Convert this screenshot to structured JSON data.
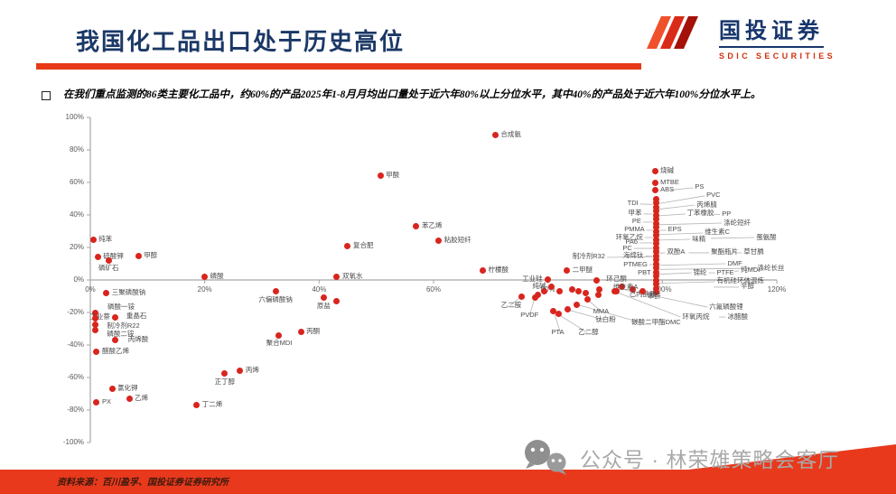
{
  "header": {
    "title": "我国化工品出口处于历史高位"
  },
  "logo": {
    "name": "国投证券",
    "subtitle": "SDIC SECURITIES"
  },
  "bullet": {
    "marker": "□",
    "text": "在我们重点监测的86类主要化工品中，约60%的产品2025年1-8月月均出口量处于近六年80%以上分位水平，其中40%的产品处于近六年100%分位水平上。"
  },
  "watermark": {
    "icon": "wechat-bubbles-icon",
    "text": "公众号 · 林荣雄策略会客厅"
  },
  "footer": {
    "source": "资料来源：百川盈孚、国投证券证券研究所"
  },
  "theme": {
    "accent_red": "#E8391C",
    "dot_red": "#D8251D",
    "navy": "#17356C",
    "label_gray": "#4A4A4A",
    "axis_gray": "#A6A6A6",
    "watermark_gray": "#A9A9A9"
  },
  "chart_data": {
    "type": "scatter",
    "title": "",
    "xlabel": "",
    "ylabel": "",
    "xlim": [
      0,
      120
    ],
    "ylim": [
      -100,
      100
    ],
    "grid": false,
    "x_ticks": [
      {
        "v": 0,
        "label": "0%"
      },
      {
        "v": 20,
        "label": "20%"
      },
      {
        "v": 40,
        "label": "40%"
      },
      {
        "v": 60,
        "label": "60%"
      },
      {
        "v": 80,
        "label": "80%"
      },
      {
        "v": 100,
        "label": "100%"
      },
      {
        "v": 120,
        "label": "120%"
      }
    ],
    "y_ticks": [
      {
        "v": 100,
        "label": "100%"
      },
      {
        "v": 80,
        "label": "80%"
      },
      {
        "v": 60,
        "label": "60%"
      },
      {
        "v": 40,
        "label": "40%"
      },
      {
        "v": 20,
        "label": "20%"
      },
      {
        "v": 0,
        "label": "0%"
      },
      {
        "v": -20,
        "label": "-20%"
      },
      {
        "v": -40,
        "label": "-40%"
      },
      {
        "v": -60,
        "label": "-60%"
      },
      {
        "v": -80,
        "label": "-80%"
      },
      {
        "v": -100,
        "label": "-100%"
      }
    ],
    "points": [
      {
        "label": "纯苯",
        "x": 0.5,
        "y": 25,
        "lp": "r"
      },
      {
        "label": "硫酸钾",
        "x": 1.3,
        "y": 14.4,
        "lp": "r"
      },
      {
        "label": "磷矿石",
        "x": 3.2,
        "y": 12.2,
        "lp": "b"
      },
      {
        "label": "甲醇",
        "x": 8.4,
        "y": 15,
        "lp": "r"
      },
      {
        "label": "磷酸",
        "x": 20,
        "y": 2,
        "lp": "r"
      },
      {
        "label": "三聚磷酸钠",
        "x": 2.8,
        "y": -7.8,
        "lp": "r"
      },
      {
        "label": "磷酸一铵",
        "x": 0.8,
        "y": -20.5,
        "lx": 3,
        "ly": -16.5
      },
      {
        "label": "工业萘",
        "x": 4.4,
        "y": -22.8,
        "lp": "l"
      },
      {
        "label": "重晶石",
        "x": 0.8,
        "y": -23.8,
        "lx": 6.3,
        "ly": -22.3
      },
      {
        "label": "制冷剂R22",
        "x": 0.8,
        "y": -27.5,
        "lx": 2.9,
        "ly": -28.3
      },
      {
        "label": "磷酸二铵",
        "x": 0.8,
        "y": -31,
        "lx": 2.9,
        "ly": -33.3
      },
      {
        "label": "丙烯酸",
        "x": 4.3,
        "y": -37,
        "lx": 6.6,
        "ly": -36.4
      },
      {
        "label": "醋酸乙烯",
        "x": 1.1,
        "y": -44,
        "lp": "r"
      },
      {
        "label": "氯化钾",
        "x": 3.8,
        "y": -67,
        "lp": "r"
      },
      {
        "label": "PX",
        "x": 1.1,
        "y": -75.5,
        "lp": "r"
      },
      {
        "label": "乙烯",
        "x": 6.8,
        "y": -73,
        "lp": "r"
      },
      {
        "label": "丁二烯",
        "x": 18.6,
        "y": -77,
        "lp": "r"
      },
      {
        "label": "正丁醇",
        "x": 23.5,
        "y": -57.5,
        "lp": "b"
      },
      {
        "label": "丙烯",
        "x": 26.2,
        "y": -56,
        "lp": "r"
      },
      {
        "label": "聚合MDI",
        "x": 33,
        "y": -34,
        "lp": "b"
      },
      {
        "label": "丙酮",
        "x": 36.8,
        "y": -32,
        "lp": "r"
      },
      {
        "label": "六偏磷酸钠",
        "x": 32.4,
        "y": -7.2,
        "lp": "b"
      },
      {
        "label": "原盐",
        "x": 40.8,
        "y": -11,
        "lp": "b"
      },
      {
        "label": "双氧水",
        "x": 43.1,
        "y": 1.7,
        "lp": "r"
      },
      {
        "label": "复合肥",
        "x": 45,
        "y": 20.6,
        "lp": "r"
      },
      {
        "label": "苯乙烯",
        "x": 57,
        "y": 33.3,
        "lp": "r"
      },
      {
        "label": "粘胶短纤",
        "x": 60.9,
        "y": 23.9,
        "lp": "r"
      },
      {
        "label": "甲酸",
        "x": 50.7,
        "y": 64,
        "lp": "r"
      },
      {
        "label": "合成氨",
        "x": 70.8,
        "y": 89,
        "lp": "r"
      },
      {
        "label": "柠檬酸",
        "x": 68.6,
        "y": 5.6,
        "lp": "r"
      },
      {
        "label": "二甲醚",
        "x": 83.3,
        "y": 6.1,
        "lp": "r"
      },
      {
        "label": "烧碱",
        "x": 98.7,
        "y": 67,
        "lp": "r"
      },
      {
        "label": "MTBE",
        "x": 98.7,
        "y": 60,
        "lp": "r"
      },
      {
        "label": "ABS",
        "x": 98.7,
        "y": 55.5,
        "lp": "r"
      },
      {
        "label": "工业硅",
        "x": 80,
        "y": 0.5,
        "lp": "l"
      },
      {
        "label": "纯碱",
        "x": 80.6,
        "y": -4,
        "lp": "l"
      },
      {
        "label": "环己酮",
        "x": 88.5,
        "y": -0.5,
        "lx": 90.2,
        "ly": 0.8
      },
      {
        "label": "维生素A",
        "x": 89,
        "y": -5.6,
        "lx": 91.4,
        "ly": -4.2
      },
      {
        "label": "己内酰胺",
        "x": 92,
        "y": -6.7,
        "lx": 94.2,
        "ly": -8.9
      },
      {
        "label": "苯酐",
        "x": 96.5,
        "y": -6.7,
        "lx": 97.4,
        "ly": -10
      },
      {
        "label": "乙二胺",
        "x": 75.4,
        "y": -10,
        "lx": 71.8,
        "ly": -15.8,
        "ld": 1
      },
      {
        "label": "PVDF",
        "x": 77.7,
        "y": -11,
        "lx": 75.2,
        "ly": -21.7,
        "ld": 1
      },
      {
        "label": "PTA",
        "x": 81,
        "y": -19.4,
        "lx": 80.6,
        "ly": -32.4,
        "ld": 1
      },
      {
        "label": "乙二醇",
        "x": 81.8,
        "y": -21.1,
        "lx": 85.3,
        "ly": -32.4,
        "ld": 1
      },
      {
        "label": "钛白粉",
        "x": 83.4,
        "y": -18.3,
        "lx": 88.3,
        "ly": -24.6,
        "ld": 1
      },
      {
        "label": "MMA",
        "x": 86.9,
        "y": -12.2,
        "lx": 87.9,
        "ly": -19.6,
        "ld": 1
      },
      {
        "label": "碳酸二甲酯DMC",
        "x": 85,
        "y": -15,
        "lx": 94.6,
        "ly": -26.2,
        "ld": 1
      }
    ],
    "stack": {
      "x": 98.9,
      "ys": [
        50,
        47.5,
        45,
        42.5,
        40,
        37.5,
        35,
        32.5,
        30,
        27.5,
        25,
        22.5,
        20,
        17.5,
        15,
        12.5,
        10,
        7.5,
        5,
        2.5,
        0,
        -2.5,
        -5,
        -7.5
      ]
    },
    "extra_points": [
      [
        43,
        -13.3
      ],
      [
        78.2,
        -8.9
      ],
      [
        79.3,
        -6.7
      ],
      [
        82.1,
        -6.7
      ],
      [
        84.2,
        -5.6
      ],
      [
        85.3,
        -6.7
      ],
      [
        86.6,
        -8.3
      ],
      [
        88.8,
        -8.9
      ],
      [
        91.6,
        -6.7
      ],
      [
        92.9,
        -4.4
      ],
      [
        94.8,
        -5.6
      ]
    ],
    "callouts": [
      {
        "label": "TDI",
        "lx": 95.8,
        "ly": 46.7,
        "ax": 98.3,
        "ay": 46.5,
        "side": "l"
      },
      {
        "label": "甲苯",
        "lx": 96.4,
        "ly": 40.6,
        "ax": 98.3,
        "ay": 40.6,
        "side": "l"
      },
      {
        "label": "PE",
        "lx": 96.3,
        "ly": 35.6,
        "ax": 98.3,
        "ay": 35.6,
        "side": "l"
      },
      {
        "label": "PMMA",
        "lx": 96.9,
        "ly": 30.6,
        "ax": 98.3,
        "ay": 30.6,
        "side": "l"
      },
      {
        "label": "环氧乙烷",
        "lx": 96.6,
        "ly": 26.1,
        "ax": 98.3,
        "ay": 26.1,
        "side": "l"
      },
      {
        "label": "PA6",
        "lx": 95.7,
        "ly": 22.8,
        "ax": 98.3,
        "ay": 22.8,
        "side": "l"
      },
      {
        "label": "PC",
        "lx": 94.7,
        "ly": 19.4,
        "ax": 98.3,
        "ay": 19.4,
        "side": "l"
      },
      {
        "label": "制冷剂R32",
        "lx": 90,
        "ly": 13.9,
        "ax": 98.3,
        "ay": 14.3,
        "side": "l"
      },
      {
        "label": "海绵钛",
        "lx": 96.7,
        "ly": 14.7,
        "ax": 98.3,
        "ay": 14.5,
        "side": "l"
      },
      {
        "label": "PTMEG",
        "lx": 97.4,
        "ly": 9.4,
        "ax": 98.3,
        "ay": 9.4,
        "side": "l"
      },
      {
        "label": "PBT",
        "lx": 98,
        "ly": 4.4,
        "ax": 98.5,
        "ay": 4.4,
        "side": "l"
      },
      {
        "label": "PS",
        "lx": 105.7,
        "ly": 56.7,
        "ax": 101.5,
        "ay": 55.3,
        "side": "r"
      },
      {
        "label": "PVC",
        "lx": 107.7,
        "ly": 51.7,
        "ax": 99.4,
        "ay": 47,
        "side": "r"
      },
      {
        "label": "丙烯腈",
        "lx": 106,
        "ly": 46.1,
        "ax": 99.4,
        "ay": 43.5,
        "side": "r"
      },
      {
        "label": "丁苯橡胶",
        "lx": 104.3,
        "ly": 40.6,
        "ax": 99.4,
        "ay": 39.5,
        "side": "r"
      },
      {
        "label": "PP",
        "lx": 110.4,
        "ly": 40.3,
        "ax": 108.9,
        "ay": 40.4,
        "side": "r"
      },
      {
        "label": "涤纶短纤",
        "lx": 110.7,
        "ly": 35,
        "ax": 99.4,
        "ay": 34,
        "side": "r"
      },
      {
        "label": "EPS",
        "lx": 101,
        "ly": 30.6,
        "ax": 99.4,
        "ay": 30.5,
        "side": "r"
      },
      {
        "label": "维生素C",
        "lx": 107.4,
        "ly": 28.9,
        "ax": 99.4,
        "ay": 28,
        "side": "r"
      },
      {
        "label": "味精",
        "lx": 105.2,
        "ly": 25,
        "ax": 99.4,
        "ay": 24.5,
        "side": "r"
      },
      {
        "label": "蛋氨酸",
        "lx": 116.4,
        "ly": 26.1,
        "ax": 108.5,
        "ay": 25.6,
        "side": "r"
      },
      {
        "label": "双酚A",
        "lx": 100.8,
        "ly": 16.7,
        "ax": 99.4,
        "ay": 16.5,
        "side": "r"
      },
      {
        "label": "聚酯瓶片",
        "lx": 108.5,
        "ly": 16.7,
        "ax": 104.6,
        "ay": 16.7,
        "side": "r"
      },
      {
        "label": "草甘膦",
        "lx": 114.2,
        "ly": 16.7,
        "ax": 112.4,
        "ay": 16.7,
        "side": "r"
      },
      {
        "label": "DMF",
        "lx": 111.4,
        "ly": 10,
        "ax": 99.4,
        "ay": 9,
        "side": "r"
      },
      {
        "label": "涤纶长丝",
        "lx": 116.6,
        "ly": 7.2,
        "ax": 99.4,
        "ay": 6.5,
        "side": "r"
      },
      {
        "label": "锦纶",
        "lx": 105.4,
        "ly": 4.4,
        "ax": 99.4,
        "ay": 3.5,
        "side": "r"
      },
      {
        "label": "PTFE",
        "lx": 109.5,
        "ly": 4.4,
        "ax": 108.1,
        "ay": 4.4,
        "side": "r"
      },
      {
        "label": "纯MDI",
        "lx": 113.7,
        "ly": 5.6,
        "ax": 112.6,
        "ay": 5.3,
        "side": "r"
      },
      {
        "label": "有机硅环体混炼",
        "lx": 109.5,
        "ly": -1.1,
        "ax": 99.4,
        "ay": -2,
        "side": "r"
      },
      {
        "label": "辛醇",
        "lx": 113.7,
        "ly": -4.4,
        "ax": 109,
        "ay": -4.4,
        "side": "r"
      },
      {
        "label": "六氟磷酸锂",
        "lx": 108.2,
        "ly": -16.7,
        "ax": 93.5,
        "ay": -6,
        "side": "r"
      },
      {
        "label": "环氧丙烷",
        "lx": 103.5,
        "ly": -22.8,
        "ax": 92,
        "ay": -7.5,
        "side": "r"
      },
      {
        "label": "冰醋酸",
        "lx": 111.4,
        "ly": -22.8,
        "ax": 109.9,
        "ay": -22.8,
        "side": "r"
      }
    ]
  }
}
